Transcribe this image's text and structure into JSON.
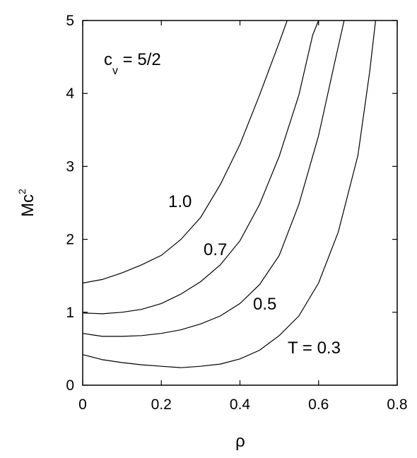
{
  "chart_data": {
    "type": "line",
    "xlim": [
      0,
      0.8
    ],
    "ylim": [
      0,
      5
    ],
    "x_ticks": [
      "0",
      "0.2",
      "0.4",
      "0.6",
      "0.8"
    ],
    "y_ticks": [
      "0",
      "1",
      "2",
      "3",
      "4",
      "5"
    ],
    "xlabel": "ρ",
    "ylabel": {
      "main": "Mc",
      "sup": "2"
    },
    "grid": false,
    "legend": "none",
    "series": [
      {
        "label": "1.0",
        "points": [
          [
            0,
            1.4
          ],
          [
            0.05,
            1.45
          ],
          [
            0.1,
            1.54
          ],
          [
            0.15,
            1.65
          ],
          [
            0.2,
            1.78
          ],
          [
            0.25,
            2.0
          ],
          [
            0.3,
            2.3
          ],
          [
            0.35,
            2.75
          ],
          [
            0.4,
            3.3
          ],
          [
            0.45,
            3.98
          ],
          [
            0.5,
            4.7
          ],
          [
            0.52,
            5.0
          ]
        ]
      },
      {
        "label": "0.7",
        "points": [
          [
            0,
            0.99
          ],
          [
            0.05,
            0.98
          ],
          [
            0.1,
            1.0
          ],
          [
            0.15,
            1.04
          ],
          [
            0.2,
            1.12
          ],
          [
            0.25,
            1.25
          ],
          [
            0.3,
            1.42
          ],
          [
            0.35,
            1.65
          ],
          [
            0.4,
            1.98
          ],
          [
            0.45,
            2.48
          ],
          [
            0.5,
            3.14
          ],
          [
            0.55,
            3.98
          ],
          [
            0.585,
            4.8
          ],
          [
            0.6,
            5.0
          ]
        ]
      },
      {
        "label": "0.5",
        "points": [
          [
            0,
            0.71
          ],
          [
            0.05,
            0.67
          ],
          [
            0.1,
            0.67
          ],
          [
            0.15,
            0.68
          ],
          [
            0.2,
            0.71
          ],
          [
            0.25,
            0.76
          ],
          [
            0.3,
            0.84
          ],
          [
            0.35,
            0.95
          ],
          [
            0.4,
            1.12
          ],
          [
            0.45,
            1.38
          ],
          [
            0.5,
            1.78
          ],
          [
            0.55,
            2.48
          ],
          [
            0.6,
            3.42
          ],
          [
            0.64,
            4.4
          ],
          [
            0.665,
            5.0
          ]
        ]
      },
      {
        "label": "T = 0.3",
        "points": [
          [
            0,
            0.42
          ],
          [
            0.05,
            0.35
          ],
          [
            0.1,
            0.31
          ],
          [
            0.15,
            0.28
          ],
          [
            0.2,
            0.26
          ],
          [
            0.25,
            0.24
          ],
          [
            0.3,
            0.26
          ],
          [
            0.35,
            0.29
          ],
          [
            0.4,
            0.36
          ],
          [
            0.45,
            0.48
          ],
          [
            0.5,
            0.68
          ],
          [
            0.55,
            0.95
          ],
          [
            0.6,
            1.4
          ],
          [
            0.65,
            2.1
          ],
          [
            0.7,
            3.15
          ],
          [
            0.73,
            4.3
          ],
          [
            0.745,
            5.0
          ]
        ]
      }
    ],
    "annotations": [
      {
        "text": "c",
        "sub": "v",
        "rest": " = 5/2"
      },
      {
        "text": "1.0"
      },
      {
        "text": "0.7"
      },
      {
        "text": "0.5"
      },
      {
        "text": "T = 0.3"
      }
    ]
  }
}
